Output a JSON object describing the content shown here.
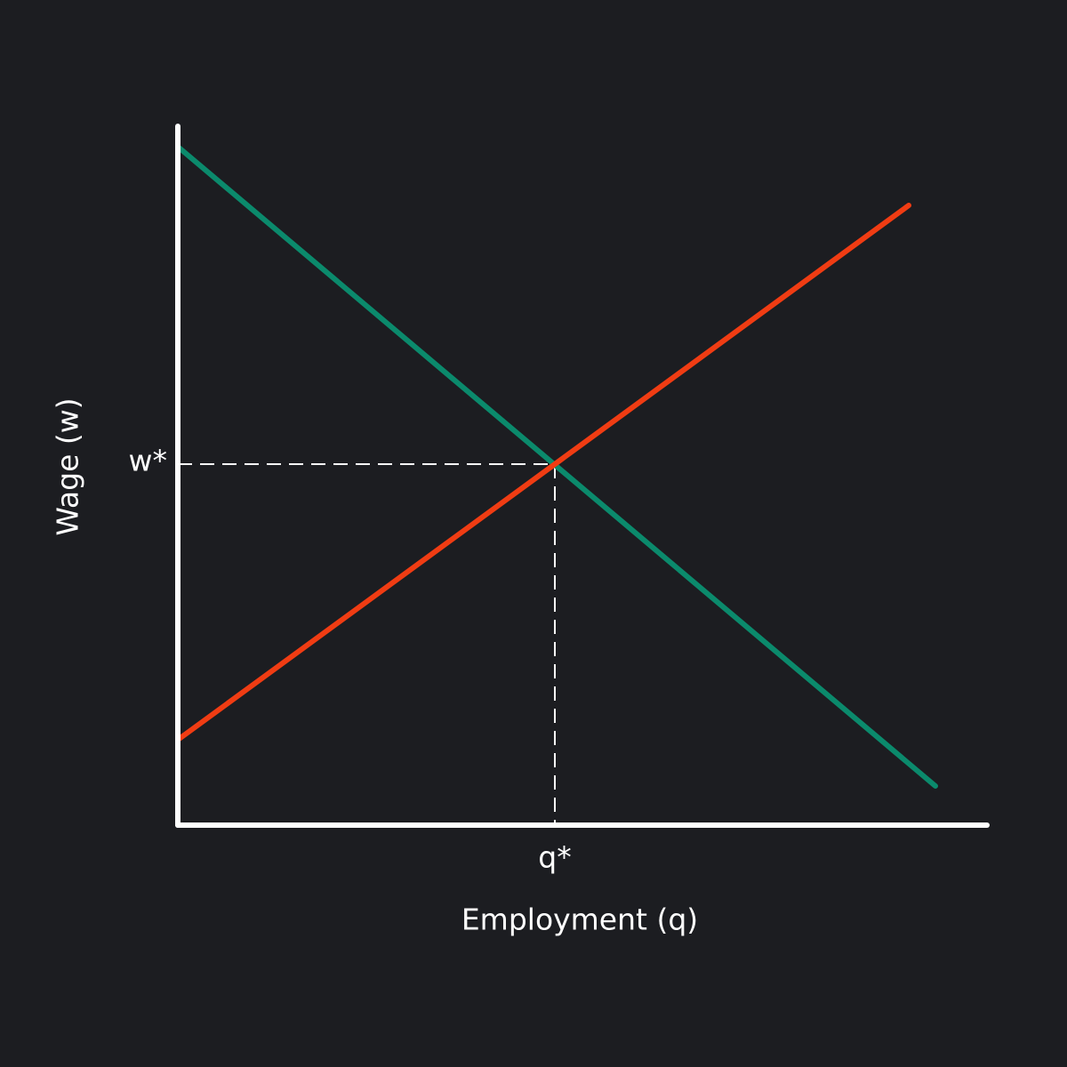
{
  "axes": {
    "x_label": "Employment (q)",
    "y_label": "Wage (w)"
  },
  "equilibrium": {
    "wage_label": "w*",
    "quantity_label": "q*"
  }
}
